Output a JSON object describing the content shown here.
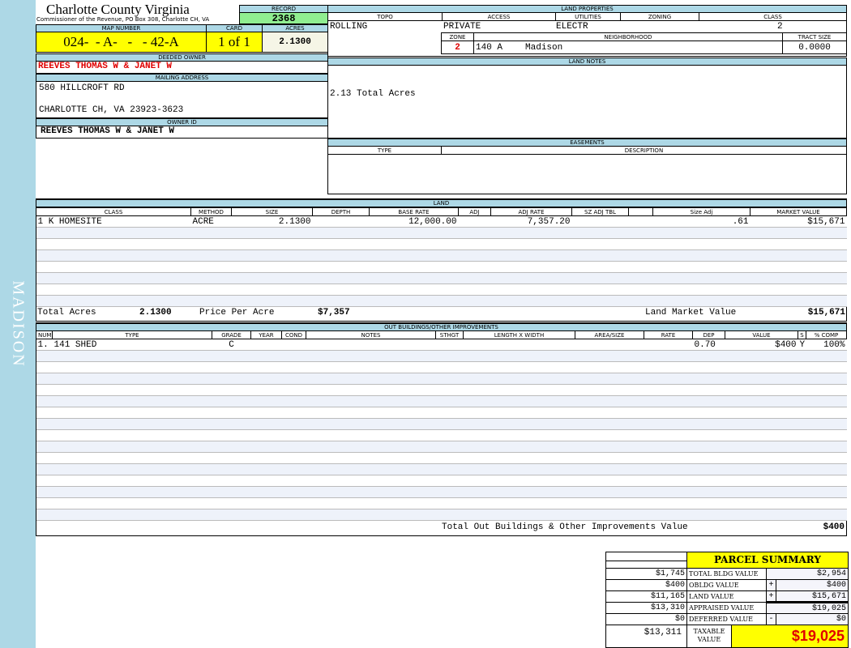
{
  "sidebar": {
    "label": "MADISON"
  },
  "header": {
    "title": "Charlotte County Virginia",
    "subtitle": "Commissioner of the Revenue, PO Box 308, Charlotte CH, VA",
    "record_label": "RECORD",
    "record": "2368",
    "map_label": "MAP NUMBER",
    "map_number": "024-  - A-   -   - 42-A",
    "card_label": "CARD",
    "card": "1 of 1",
    "acres_label": "ACRES",
    "acres": "2.1300"
  },
  "owner": {
    "deeded_label": "DEEDED OWNER",
    "deeded": "REEVES THOMAS W & JANET W",
    "mailing_label": "MAILING ADDRESS",
    "address1": "580 HILLCROFT RD",
    "address2": "CHARLOTTE CH, VA 23923-3623",
    "owner_id_label": "OWNER ID",
    "owner_id": "REEVES THOMAS W & JANET W"
  },
  "land_properties": {
    "label": "LAND PROPERTIES",
    "topo_label": "TOPO",
    "access_label": "ACCESS",
    "utilities_label": "UTILITIES",
    "zoning_label": "ZONING",
    "class_label": "CLASS",
    "topo": "ROLLING",
    "access": "PRIVATE",
    "utilities": "ELECTR",
    "zoning": "",
    "class": "2",
    "zone_label": "ZONE",
    "neighborhood_label": "NEIGHBORHOOD",
    "tract_label": "TRACT SIZE",
    "zone": "2",
    "neighborhood_code": "140 A",
    "neighborhood": "Madison",
    "tract_size": "0.0000"
  },
  "land_notes": {
    "label": "LAND NOTES",
    "text": "2.13 Total Acres"
  },
  "easements": {
    "label": "EASEMENTS",
    "type_label": "TYPE",
    "desc_label": "DESCRIPTION"
  },
  "land": {
    "label": "LAND",
    "columns": [
      "CLASS",
      "METHOD",
      "SIZE",
      "DEPTH",
      "BASE RATE",
      "ADJ",
      "ADJ RATE",
      "SZ ADJ TBL",
      "",
      "Size Adj",
      "MARKET VALUE"
    ],
    "rows": [
      [
        "1 K HOMESITE",
        "ACRE",
        "2.1300",
        "",
        "12,000.00",
        "",
        "7,357.20",
        "",
        "",
        ".61",
        "$15,671"
      ]
    ],
    "total_acres_label": "Total Acres",
    "total_acres": "2.1300",
    "ppa_label": "Price Per Acre",
    "ppa": "$7,357",
    "lmv_label": "Land Market Value",
    "lmv": "$15,671"
  },
  "outbuildings": {
    "label": "OUT BUILDINGS/OTHER IMPROVEMENTS",
    "columns": [
      "NUM",
      "TYPE",
      "GRADE",
      "YEAR",
      "COND",
      "NOTES",
      "STHGT",
      "LENGTH X WIDTH",
      "AREA/SIZE",
      "RATE",
      "DEP",
      "VALUE",
      "S",
      "% COMP"
    ],
    "rows": [
      [
        "1.",
        "141 SHED",
        "C",
        "",
        "",
        "",
        "",
        "",
        "",
        "",
        "0.70",
        "$400",
        "Y",
        "100%"
      ]
    ],
    "total_label": "Total Out Buildings & Other Improvements Value",
    "total": "$400"
  },
  "summary": {
    "title": "PARCEL SUMMARY",
    "rows": [
      {
        "prev": "$1,745",
        "label": "TOTAL BLDG VALUE",
        "op": "",
        "value": "$2,954"
      },
      {
        "prev": "$400",
        "label": "OBLDG VALUE",
        "op": "+",
        "value": "$400"
      },
      {
        "prev": "$11,165",
        "label": "LAND VALUE",
        "op": "+",
        "value": "$15,671"
      },
      {
        "prev": "$13,310",
        "label": "APPRAISED VALUE",
        "op": "",
        "value": "$19,025"
      },
      {
        "prev": "$0",
        "label": "DEFERRED VALUE",
        "op": "-",
        "value": "$0"
      }
    ],
    "taxable_prev": "$13,311",
    "taxable_label": "TAXABLE VALUE",
    "taxable": "$19,025"
  },
  "colors": {
    "header_blue": "#add8e6",
    "highlight_yellow": "#ffff00",
    "record_green": "#90ee90",
    "owner_red": "#e00000"
  }
}
